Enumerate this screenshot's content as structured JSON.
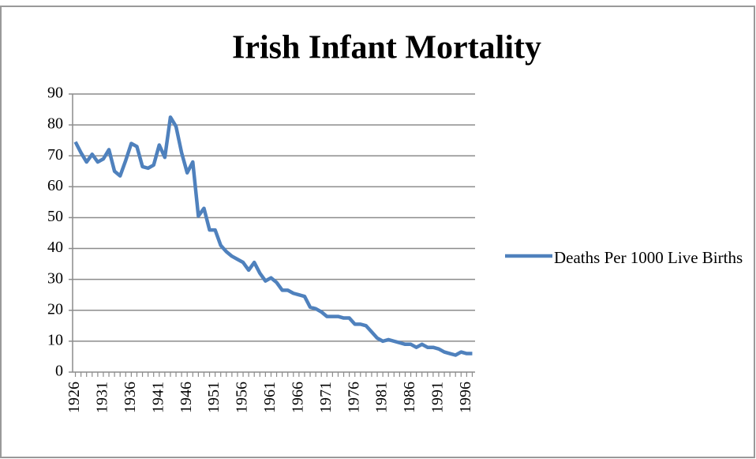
{
  "chart_data": {
    "type": "line",
    "title": "Irish Infant Mortality",
    "x": [
      1926,
      1927,
      1928,
      1929,
      1930,
      1931,
      1932,
      1933,
      1934,
      1935,
      1936,
      1937,
      1938,
      1939,
      1940,
      1941,
      1942,
      1943,
      1944,
      1945,
      1946,
      1947,
      1948,
      1949,
      1950,
      1951,
      1952,
      1953,
      1954,
      1955,
      1956,
      1957,
      1958,
      1959,
      1960,
      1961,
      1962,
      1963,
      1964,
      1965,
      1966,
      1967,
      1968,
      1969,
      1970,
      1971,
      1972,
      1973,
      1974,
      1975,
      1976,
      1977,
      1978,
      1979,
      1980,
      1981,
      1982,
      1983,
      1984,
      1985,
      1986,
      1987,
      1988,
      1989,
      1990,
      1991,
      1992,
      1993,
      1994,
      1995,
      1996,
      1997
    ],
    "series": [
      {
        "name": "Deaths Per 1000 Live Births",
        "color": "#4f81bd",
        "values": [
          74.5,
          71,
          68,
          70.5,
          68,
          69,
          72,
          65,
          63.5,
          68.5,
          74,
          73,
          66.5,
          66,
          67,
          73.5,
          69.5,
          82.5,
          79.5,
          71,
          64.5,
          68,
          50.5,
          53,
          46,
          46,
          41,
          39,
          37.5,
          36.5,
          35.5,
          33,
          35.5,
          32,
          29.5,
          30.5,
          29,
          26.5,
          26.5,
          25.5,
          25,
          24.5,
          21,
          20.5,
          19.5,
          18,
          18,
          18,
          17.5,
          17.5,
          15.5,
          15.5,
          15,
          13,
          11,
          10,
          10.5,
          10,
          9.5,
          9,
          9,
          8,
          9,
          8,
          8,
          7.5,
          6.5,
          6,
          5.5,
          6.5,
          6,
          6
        ]
      }
    ],
    "xlim": [
      1925.5,
      1997.5
    ],
    "xticks": [
      1926,
      1931,
      1936,
      1941,
      1946,
      1951,
      1956,
      1961,
      1966,
      1971,
      1976,
      1981,
      1986,
      1991,
      1996
    ],
    "ylim": [
      0,
      90
    ],
    "yticks": [
      0,
      10,
      20,
      30,
      40,
      50,
      60,
      70,
      80,
      90
    ],
    "grid": true,
    "legend": "right"
  }
}
